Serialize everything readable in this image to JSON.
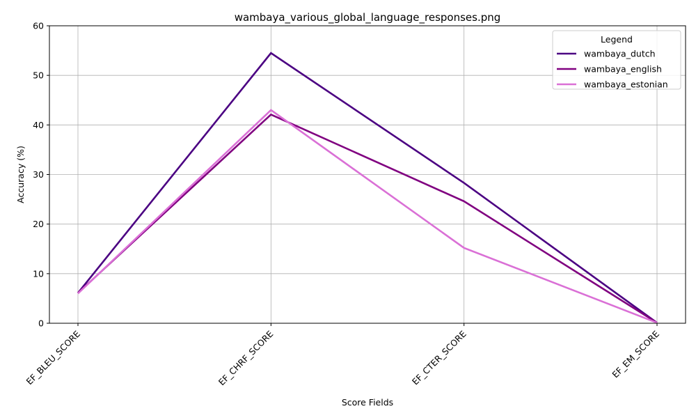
{
  "chart_data": {
    "type": "line",
    "title": "wambaya_various_global_language_responses.png",
    "xlabel": "Score Fields",
    "ylabel": "Accuracy (%)",
    "categories": [
      "EF_BLEU_SCORE",
      "EF_CHRF_SCORE",
      "EF_CTER_SCORE",
      "EF_EM_SCORE"
    ],
    "ylim": [
      0,
      60
    ],
    "yticks": [
      0,
      10,
      20,
      30,
      40,
      50,
      60
    ],
    "grid": true,
    "legend": {
      "title": "Legend",
      "placement": "top-right"
    },
    "series": [
      {
        "name": "wambaya_dutch",
        "color": "#4b0082",
        "values": [
          6.1,
          54.5,
          28.3,
          0.1
        ]
      },
      {
        "name": "wambaya_english",
        "color": "#800080",
        "values": [
          6.1,
          42.1,
          24.6,
          0.1
        ]
      },
      {
        "name": "wambaya_estonian",
        "color": "#da70d6",
        "values": [
          6.0,
          43.0,
          15.2,
          0.1
        ]
      }
    ]
  }
}
